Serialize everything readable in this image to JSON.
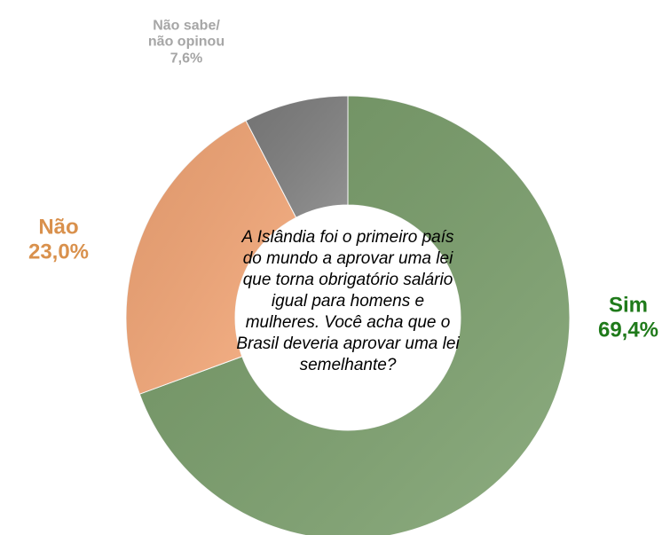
{
  "chart_data": {
    "type": "donut",
    "categories": [
      "Sim",
      "Não",
      "Não sabe/\nnão opinou"
    ],
    "values": [
      69.4,
      23.0,
      7.6
    ],
    "value_labels": [
      "69,4%",
      "23,0%",
      "7,6%"
    ],
    "colors": [
      "#7a9f6b",
      "#f7a877",
      "#808080"
    ],
    "label_colors": [
      "#1f7a1a",
      "#d9914d",
      "#a6a6a6"
    ],
    "center_text": "A Islândia foi o primeiro país do mundo a aprovar uma lei que torna obrigatório salário igual para homens e mulheres. Você acha que o Brasil deveria aprovar uma lei semelhante?"
  }
}
